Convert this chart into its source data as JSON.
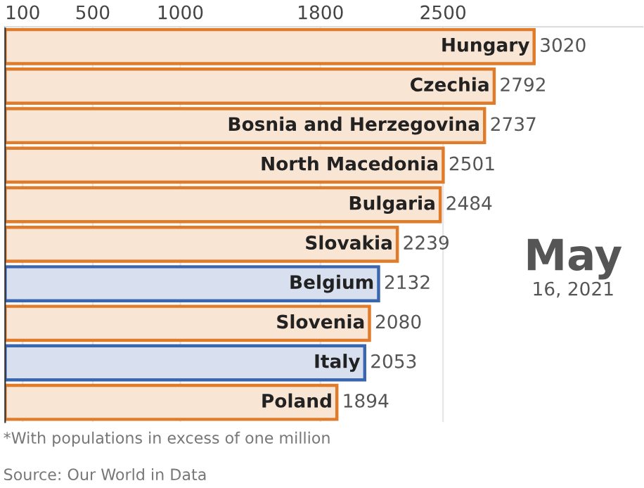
{
  "chart_data": {
    "type": "bar",
    "orientation": "horizontal",
    "categories": [
      "Hungary",
      "Czechia",
      "Bosnia and Herzegovina",
      "North Macedonia",
      "Bulgaria",
      "Slovakia",
      "Belgium",
      "Slovenia",
      "Italy",
      "Poland"
    ],
    "values": [
      3020,
      2792,
      2737,
      2501,
      2484,
      2239,
      2132,
      2080,
      2053,
      1894
    ],
    "colors": [
      "#e07b2a",
      "#e07b2a",
      "#e07b2a",
      "#e07b2a",
      "#e07b2a",
      "#e07b2a",
      "#3a66b0",
      "#e07b2a",
      "#3a66b0",
      "#e07b2a"
    ],
    "xlim": [
      0,
      3640
    ],
    "xticks": [
      100,
      500,
      1000,
      1800,
      2500
    ],
    "grid": "x",
    "data_labels": true,
    "annotations": [
      "May",
      "16, 2021",
      "*With populations in excess of one million",
      "Source: Our World in Data"
    ]
  }
}
